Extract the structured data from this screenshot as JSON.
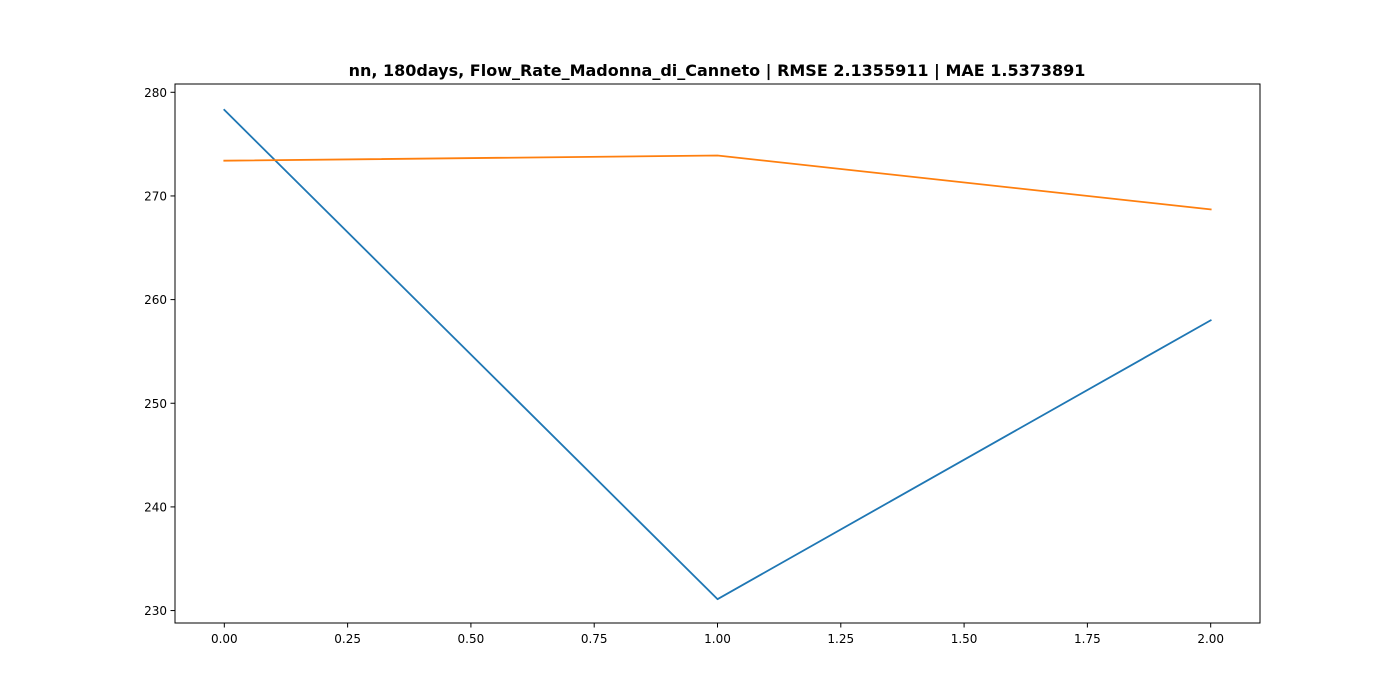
{
  "chart_data": {
    "type": "line",
    "title": "nn, 180days, Flow_Rate_Madonna_di_Canneto | RMSE 2.1355911 | MAE 1.5373891",
    "xlabel": "",
    "ylabel": "",
    "x": [
      0,
      1,
      2
    ],
    "xlim": [
      -0.1,
      2.1
    ],
    "ylim": [
      228.8,
      280.8
    ],
    "xticks": [
      0.0,
      0.25,
      0.5,
      0.75,
      1.0,
      1.25,
      1.5,
      1.75,
      2.0
    ],
    "xtick_labels": [
      "0.00",
      "0.25",
      "0.50",
      "0.75",
      "1.00",
      "1.25",
      "1.50",
      "1.75",
      "2.00"
    ],
    "yticks": [
      230,
      240,
      250,
      260,
      270,
      280
    ],
    "ytick_labels": [
      "230",
      "240",
      "250",
      "260",
      "270",
      "280"
    ],
    "grid": false,
    "series": [
      {
        "values": [
          278.3,
          231.1,
          258.0
        ],
        "color": "#1f77b4"
      },
      {
        "values": [
          273.4,
          273.9,
          268.7
        ],
        "color": "#ff7f0e"
      }
    ]
  }
}
